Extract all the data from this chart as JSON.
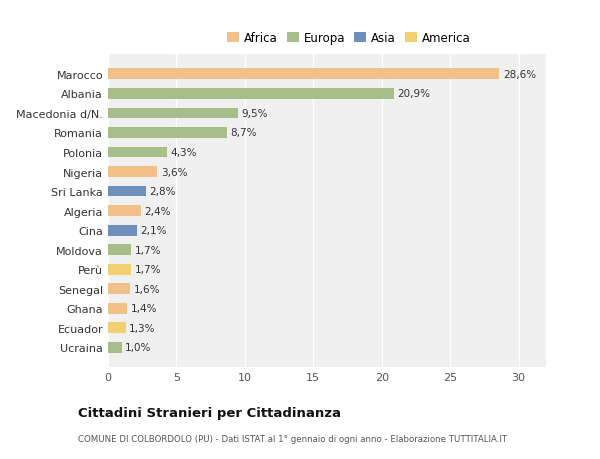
{
  "countries": [
    "Marocco",
    "Albania",
    "Macedonia d/N.",
    "Romania",
    "Polonia",
    "Nigeria",
    "Sri Lanka",
    "Algeria",
    "Cina",
    "Moldova",
    "Perù",
    "Senegal",
    "Ghana",
    "Ecuador",
    "Ucraina"
  ],
  "values": [
    28.6,
    20.9,
    9.5,
    8.7,
    4.3,
    3.6,
    2.8,
    2.4,
    2.1,
    1.7,
    1.7,
    1.6,
    1.4,
    1.3,
    1.0
  ],
  "labels": [
    "28,6%",
    "20,9%",
    "9,5%",
    "8,7%",
    "4,3%",
    "3,6%",
    "2,8%",
    "2,4%",
    "2,1%",
    "1,7%",
    "1,7%",
    "1,6%",
    "1,4%",
    "1,3%",
    "1,0%"
  ],
  "colors": [
    "#F2C18A",
    "#A8BE8A",
    "#A8BE8A",
    "#A8BE8A",
    "#A8BE8A",
    "#F2C18A",
    "#6E8FBB",
    "#F2C18A",
    "#6E8FBB",
    "#A8BE8A",
    "#F0D070",
    "#F2C18A",
    "#F2C18A",
    "#F0D070",
    "#A8BE8A"
  ],
  "legend_labels": [
    "Africa",
    "Europa",
    "Asia",
    "America"
  ],
  "legend_colors": [
    "#F2C18A",
    "#A8BE8A",
    "#6E8FBB",
    "#F0D070"
  ],
  "title": "Cittadini Stranieri per Cittadinanza",
  "subtitle": "COMUNE DI COLBORDOLO (PU) - Dati ISTAT al 1° gennaio di ogni anno - Elaborazione TUTTITALIA.IT",
  "xlim": [
    0,
    32
  ],
  "xticks": [
    0,
    5,
    10,
    15,
    20,
    25,
    30
  ],
  "background_color": "#ffffff",
  "plot_background": "#f0f0f0",
  "grid_color": "#ffffff",
  "bar_height": 0.55
}
